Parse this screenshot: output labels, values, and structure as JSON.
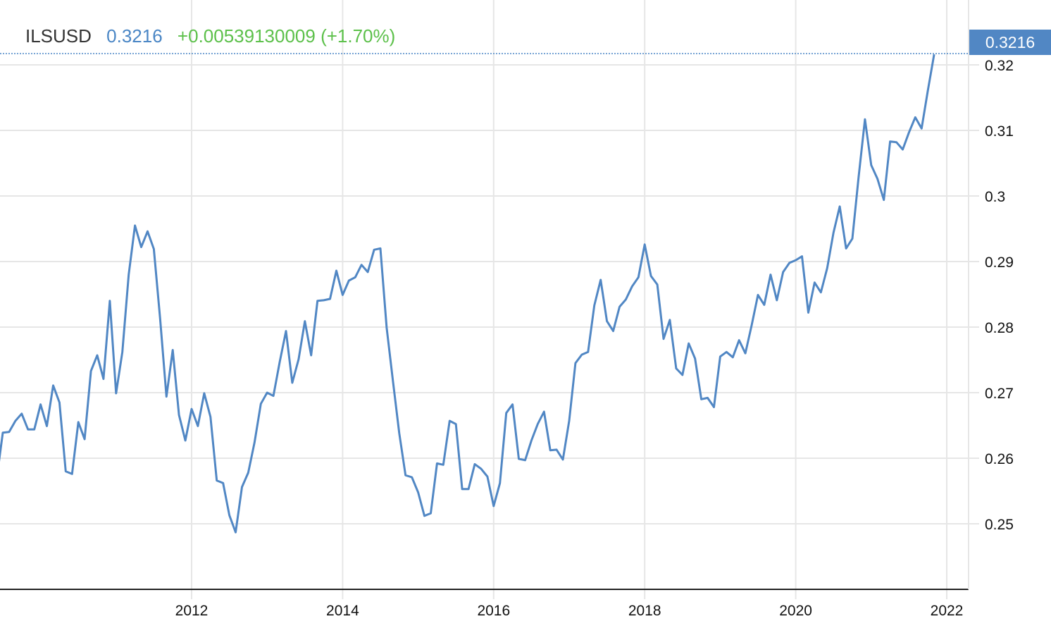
{
  "header": {
    "symbol": "ILSUSD",
    "price": "0.3216",
    "change": "+0.00539130009 (+1.70%)"
  },
  "last_value_badge": "0.3216",
  "colors": {
    "line": "#5187c4",
    "change_positive": "#5cc04a",
    "price": "#4a86c5",
    "grid": "#e6e6e6"
  },
  "chart_data": {
    "type": "line",
    "title": "",
    "xlabel": "",
    "ylabel": "",
    "grid": true,
    "ylim": [
      0.24,
      0.3235
    ],
    "y_ticks": [
      "0.25",
      "0.26",
      "0.27",
      "0.28",
      "0.29",
      "0.3",
      "0.31",
      "0.32"
    ],
    "x_ticks": [
      "2012",
      "2014",
      "2016",
      "2018",
      "2020",
      "2022"
    ],
    "dates": [
      "2009-06",
      "2009-07",
      "2009-08",
      "2009-09",
      "2009-10",
      "2009-11",
      "2009-12",
      "2010-01",
      "2010-02",
      "2010-03",
      "2010-04",
      "2010-05",
      "2010-06",
      "2010-07",
      "2010-08",
      "2010-09",
      "2010-10",
      "2010-11",
      "2010-12",
      "2011-01",
      "2011-02",
      "2011-03",
      "2011-04",
      "2011-05",
      "2011-06",
      "2011-07",
      "2011-08",
      "2011-09",
      "2011-10",
      "2011-11",
      "2011-12",
      "2012-01",
      "2012-02",
      "2012-03",
      "2012-04",
      "2012-05",
      "2012-06",
      "2012-07",
      "2012-08",
      "2012-09",
      "2012-10",
      "2012-11",
      "2012-12",
      "2013-01",
      "2013-02",
      "2013-03",
      "2013-04",
      "2013-05",
      "2013-06",
      "2013-07",
      "2013-08",
      "2013-09",
      "2013-10",
      "2013-11",
      "2013-12",
      "2014-01",
      "2014-02",
      "2014-03",
      "2014-04",
      "2014-05",
      "2014-06",
      "2014-07",
      "2014-08",
      "2014-09",
      "2014-10",
      "2014-11",
      "2014-12",
      "2015-01",
      "2015-02",
      "2015-03",
      "2015-04",
      "2015-05",
      "2015-06",
      "2015-07",
      "2015-08",
      "2015-09",
      "2015-10",
      "2015-11",
      "2015-12",
      "2016-01",
      "2016-02",
      "2016-03",
      "2016-04",
      "2016-05",
      "2016-06",
      "2016-07",
      "2016-08",
      "2016-09",
      "2016-10",
      "2016-11",
      "2016-12",
      "2017-01",
      "2017-02",
      "2017-03",
      "2017-04",
      "2017-05",
      "2017-06",
      "2017-07",
      "2017-08",
      "2017-09",
      "2017-10",
      "2017-11",
      "2017-12",
      "2018-01",
      "2018-02",
      "2018-03",
      "2018-04",
      "2018-05",
      "2018-06",
      "2018-07",
      "2018-08",
      "2018-09",
      "2018-10",
      "2018-11",
      "2018-12",
      "2019-01",
      "2019-02",
      "2019-03",
      "2019-04",
      "2019-05",
      "2019-06",
      "2019-07",
      "2019-08",
      "2019-09",
      "2019-10",
      "2019-11",
      "2019-12",
      "2020-01",
      "2020-02",
      "2020-03",
      "2020-04",
      "2020-05",
      "2020-06",
      "2020-07",
      "2020-08",
      "2020-09",
      "2020-10",
      "2020-11",
      "2020-12",
      "2021-01",
      "2021-02",
      "2021-03",
      "2021-04",
      "2021-05",
      "2021-06",
      "2021-07",
      "2021-08",
      "2021-09",
      "2021-10",
      "2021-11"
    ],
    "series": [
      {
        "values": [
          0.2567,
          0.2639,
          0.264,
          0.2657,
          0.2668,
          0.2644,
          0.2644,
          0.2682,
          0.2649,
          0.2711,
          0.2685,
          0.258,
          0.2576,
          0.2655,
          0.2629,
          0.2733,
          0.2757,
          0.2721,
          0.284,
          0.2699,
          0.2762,
          0.288,
          0.2955,
          0.2922,
          0.2946,
          0.2919,
          0.2813,
          0.2694,
          0.2765,
          0.2666,
          0.2627,
          0.2675,
          0.2649,
          0.2699,
          0.2663,
          0.2566,
          0.2562,
          0.2513,
          0.2487,
          0.2556,
          0.2578,
          0.2624,
          0.2683,
          0.27,
          0.2695,
          0.2747,
          0.2794,
          0.2715,
          0.2751,
          0.2809,
          0.2757,
          0.284,
          0.2841,
          0.2843,
          0.2886,
          0.2849,
          0.2871,
          0.2876,
          0.2895,
          0.2884,
          0.2918,
          0.292,
          0.2799,
          0.2717,
          0.2638,
          0.2574,
          0.2571,
          0.2548,
          0.2512,
          0.2516,
          0.2592,
          0.259,
          0.2657,
          0.2652,
          0.2553,
          0.2553,
          0.2591,
          0.2584,
          0.2572,
          0.2527,
          0.2562,
          0.2669,
          0.2682,
          0.2599,
          0.2597,
          0.2627,
          0.2652,
          0.2671,
          0.2612,
          0.2613,
          0.2598,
          0.2657,
          0.2745,
          0.2758,
          0.2762,
          0.2833,
          0.2872,
          0.2809,
          0.2794,
          0.2831,
          0.2842,
          0.2862,
          0.2876,
          0.2926,
          0.2878,
          0.2865,
          0.2782,
          0.2811,
          0.2737,
          0.2727,
          0.2775,
          0.2752,
          0.269,
          0.2692,
          0.2678,
          0.2755,
          0.2762,
          0.2754,
          0.278,
          0.276,
          0.2803,
          0.2849,
          0.2834,
          0.288,
          0.2841,
          0.2884,
          0.2898,
          0.2902,
          0.2908,
          0.2822,
          0.2868,
          0.2853,
          0.289,
          0.2944,
          0.2984,
          0.292,
          0.2935,
          0.3029,
          0.3117,
          0.3047,
          0.3026,
          0.2994,
          0.3083,
          0.3082,
          0.3071,
          0.3097,
          0.312,
          0.3103,
          0.3161,
          0.3216
        ]
      }
    ]
  }
}
